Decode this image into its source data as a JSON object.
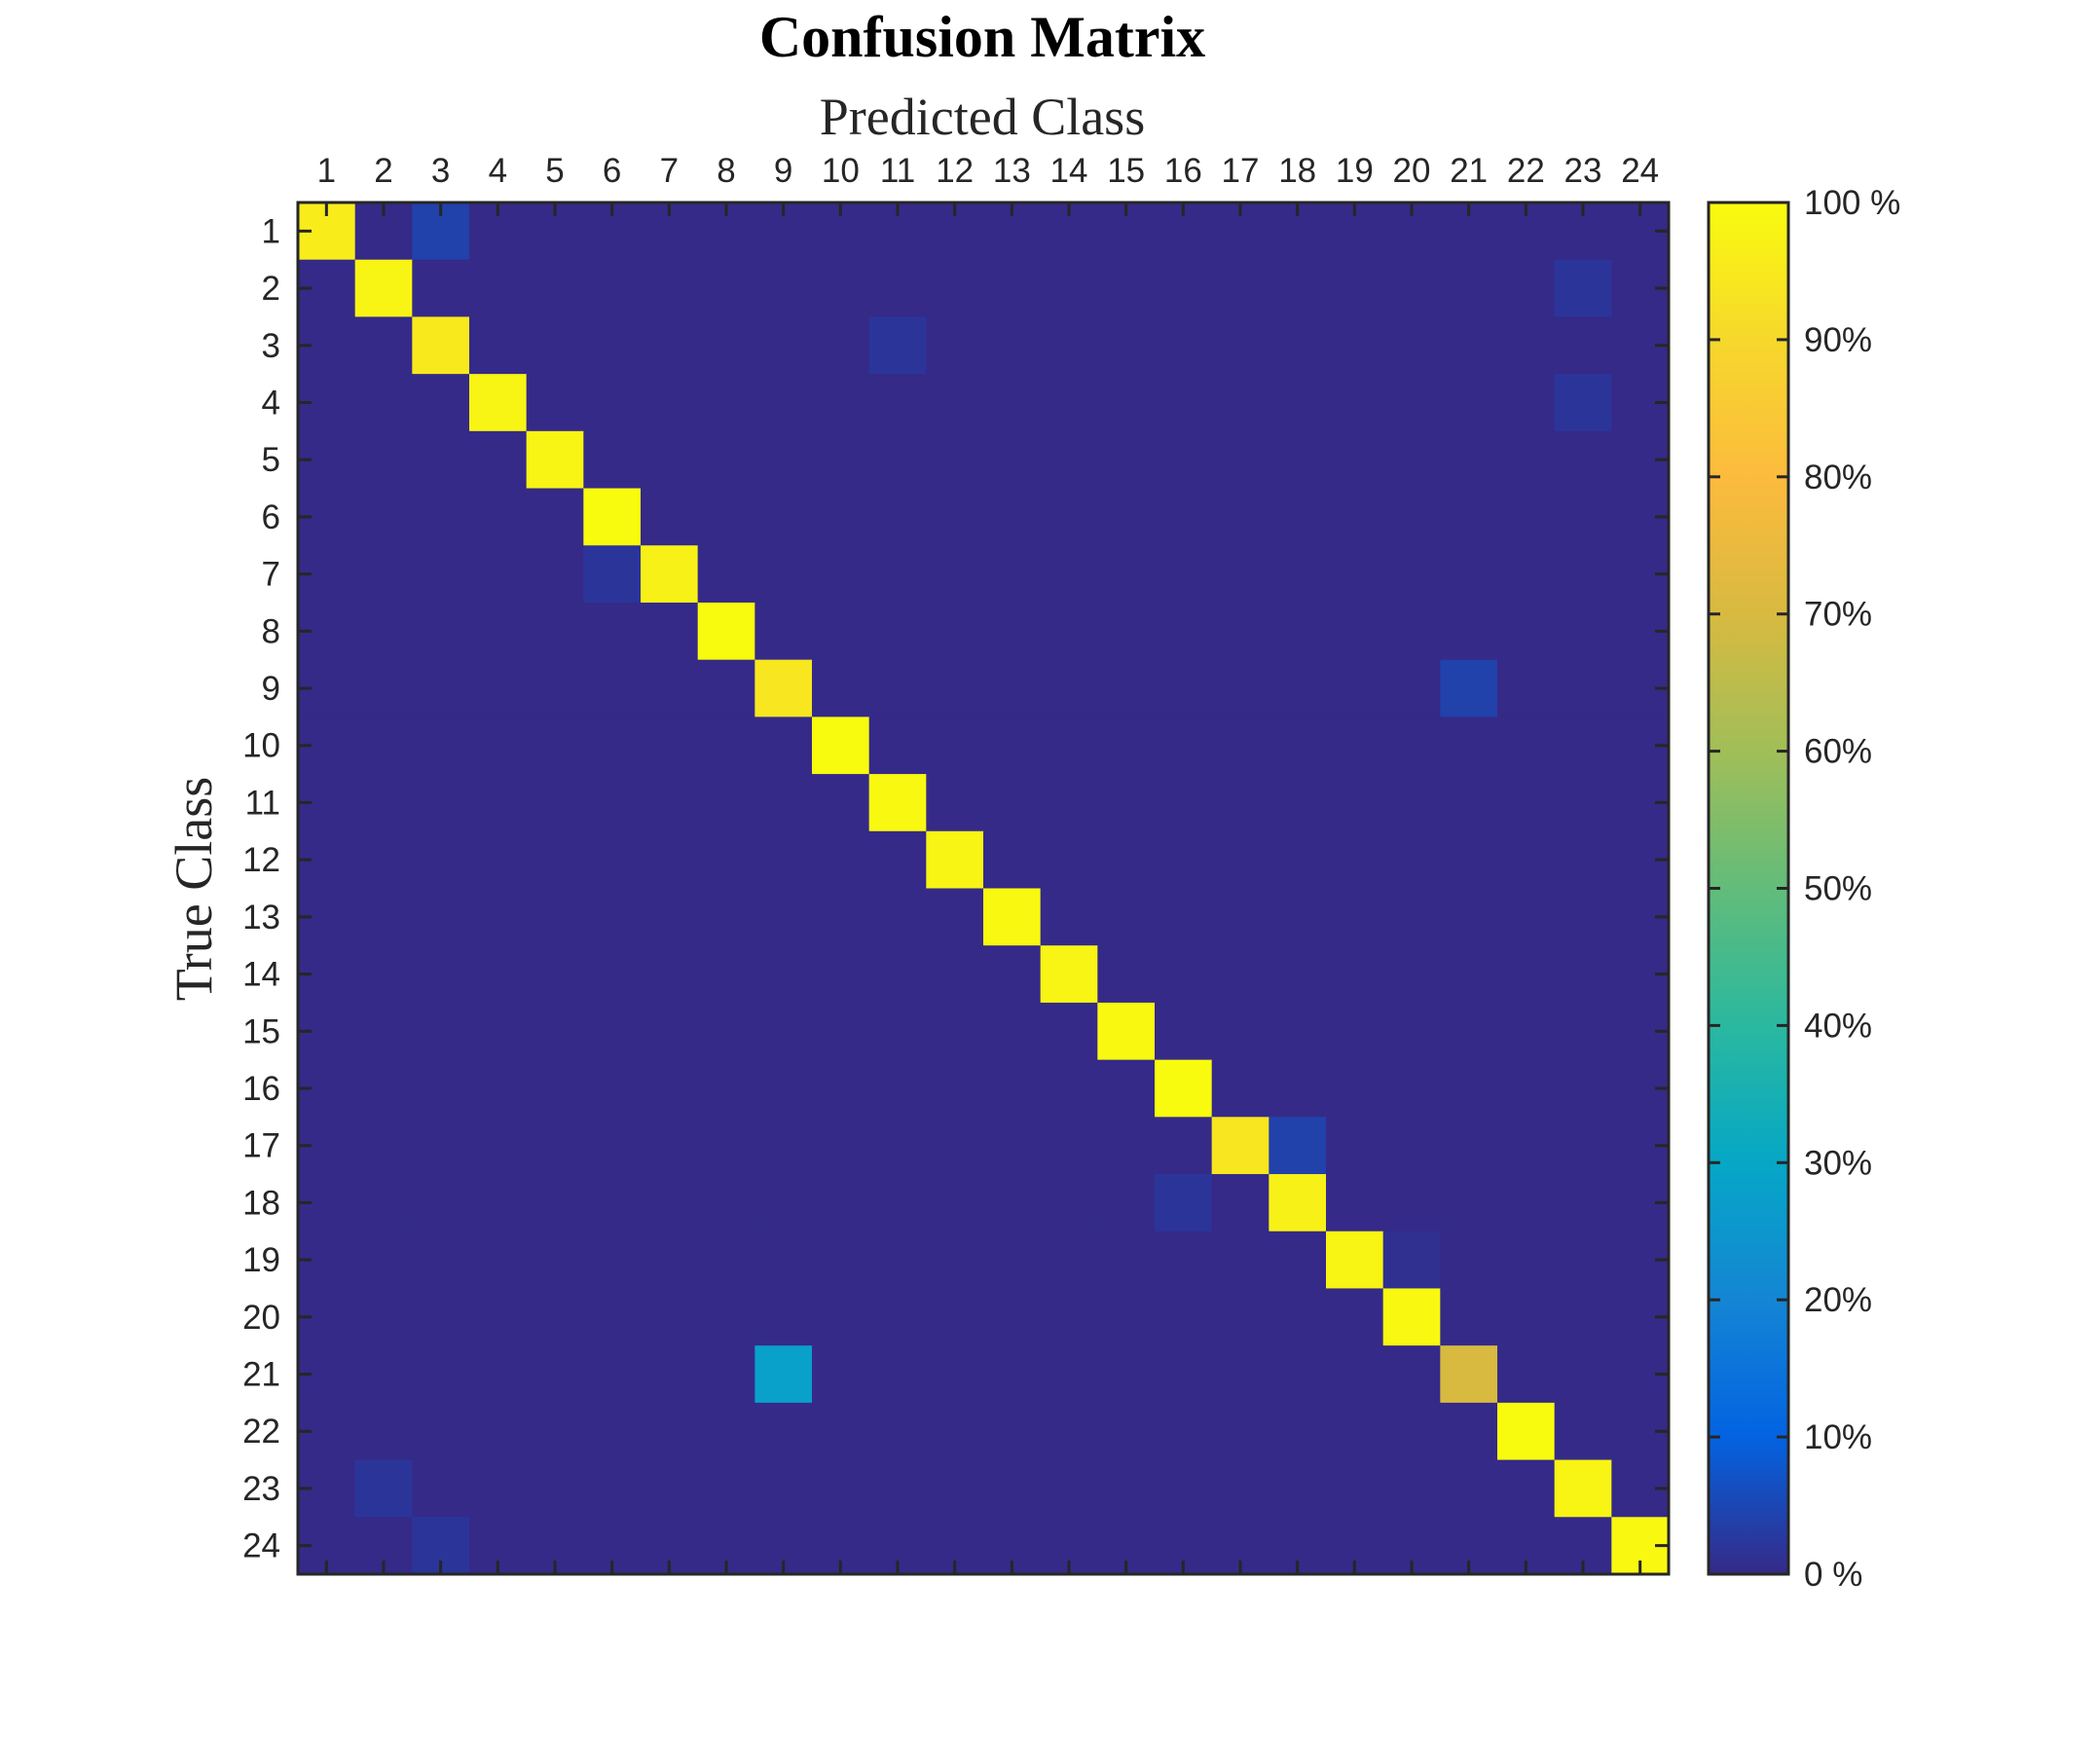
{
  "chart_data": {
    "type": "heatmap",
    "title": "Confusion Matrix",
    "xlabel": "Predicted Class",
    "ylabel": "True Class",
    "x_categories": [
      "1",
      "2",
      "3",
      "4",
      "5",
      "6",
      "7",
      "8",
      "9",
      "10",
      "11",
      "12",
      "13",
      "14",
      "15",
      "16",
      "17",
      "18",
      "19",
      "20",
      "21",
      "22",
      "23",
      "24"
    ],
    "y_categories": [
      "1",
      "2",
      "3",
      "4",
      "5",
      "6",
      "7",
      "8",
      "9",
      "10",
      "11",
      "12",
      "13",
      "14",
      "15",
      "16",
      "17",
      "18",
      "19",
      "20",
      "21",
      "22",
      "23",
      "24"
    ],
    "diagonal_percent": [
      96,
      98,
      95,
      98,
      98,
      100,
      97,
      100,
      94,
      100,
      99,
      98,
      99,
      98,
      99,
      100,
      94,
      97,
      98,
      99,
      70,
      100,
      98,
      99
    ],
    "off_diagonal_percent": [
      {
        "true": "1",
        "predicted": "3",
        "value": 4
      },
      {
        "true": "2",
        "predicted": "23",
        "value": 2
      },
      {
        "true": "3",
        "predicted": "11",
        "value": 2
      },
      {
        "true": "4",
        "predicted": "23",
        "value": 2
      },
      {
        "true": "7",
        "predicted": "6",
        "value": 2
      },
      {
        "true": "9",
        "predicted": "21",
        "value": 4
      },
      {
        "true": "17",
        "predicted": "18",
        "value": 4
      },
      {
        "true": "18",
        "predicted": "16",
        "value": 2
      },
      {
        "true": "19",
        "predicted": "20",
        "value": 1
      },
      {
        "true": "21",
        "predicted": "9",
        "value": 28
      },
      {
        "true": "23",
        "predicted": "2",
        "value": 2
      },
      {
        "true": "24",
        "predicted": "3",
        "value": 2
      }
    ],
    "colorbar": {
      "colormap": "parula",
      "range": [
        0,
        100
      ],
      "tick_labels": [
        "0 %",
        "10%",
        "20%",
        "30%",
        "40%",
        "50%",
        "60%",
        "70%",
        "80%",
        "90%",
        "100 %"
      ],
      "tick_values": [
        0,
        10,
        20,
        30,
        40,
        50,
        60,
        70,
        80,
        90,
        100
      ]
    },
    "grid": false
  }
}
